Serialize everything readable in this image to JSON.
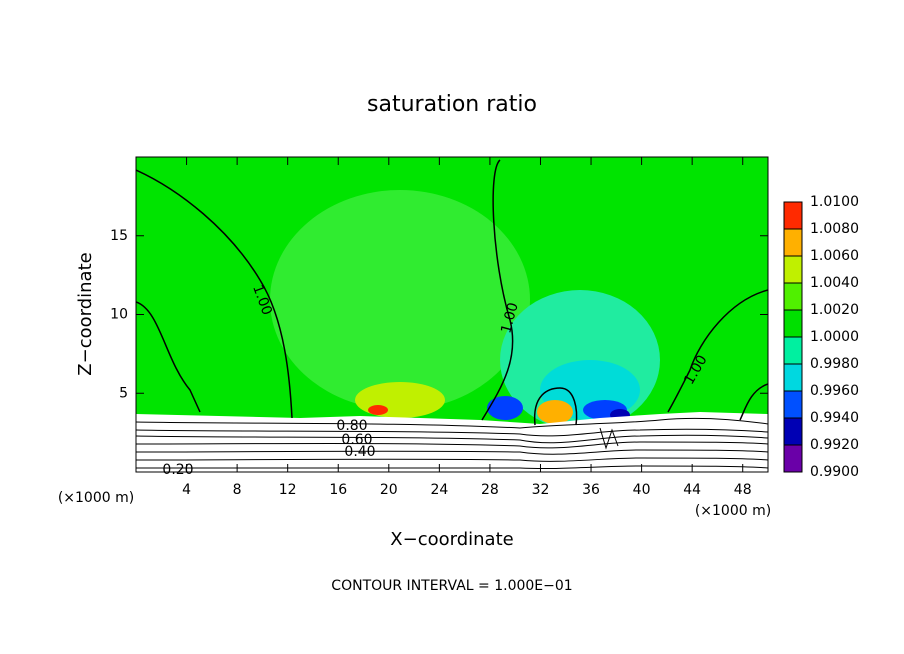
{
  "chart_data": {
    "type": "contour",
    "title": "saturation ratio",
    "x_label": "X−coordinate",
    "y_label": "Z−coordinate",
    "x_unit": "(×1000 m)",
    "y_unit": "(×1000 m)",
    "annotation": "CONTOUR INTERVAL = 1.000E−01",
    "xlim": [
      0,
      50
    ],
    "ylim": [
      0,
      20
    ],
    "xticks": [
      4,
      8,
      12,
      16,
      20,
      24,
      28,
      32,
      36,
      40,
      44,
      48
    ],
    "yticks": [
      5,
      10,
      15
    ],
    "contour_labels": [
      "1.00",
      "1.00",
      "1.00",
      "0.80",
      "0.60",
      "0.40",
      "0.20"
    ],
    "colorbar": {
      "lim": [
        0.99,
        1.01
      ],
      "ticks": [
        {
          "value": 0.99,
          "label": "0.9900"
        },
        {
          "value": 0.992,
          "label": "0.9920"
        },
        {
          "value": 0.994,
          "label": "0.9940"
        },
        {
          "value": 0.996,
          "label": "0.9960"
        },
        {
          "value": 0.998,
          "label": "0.9980"
        },
        {
          "value": 1.0,
          "label": "1.0000"
        },
        {
          "value": 1.002,
          "label": "1.0020"
        },
        {
          "value": 1.004,
          "label": "1.0040"
        },
        {
          "value": 1.006,
          "label": "1.0060"
        },
        {
          "value": 1.008,
          "label": "1.0080"
        },
        {
          "value": 1.01,
          "label": "1.0100"
        }
      ],
      "colors": [
        "#6a00a8",
        "#0000b4",
        "#0050ff",
        "#00d8e0",
        "#00f0a0",
        "#00e000",
        "#50f000",
        "#c0f000",
        "#ffb000",
        "#ff2a00"
      ]
    }
  }
}
